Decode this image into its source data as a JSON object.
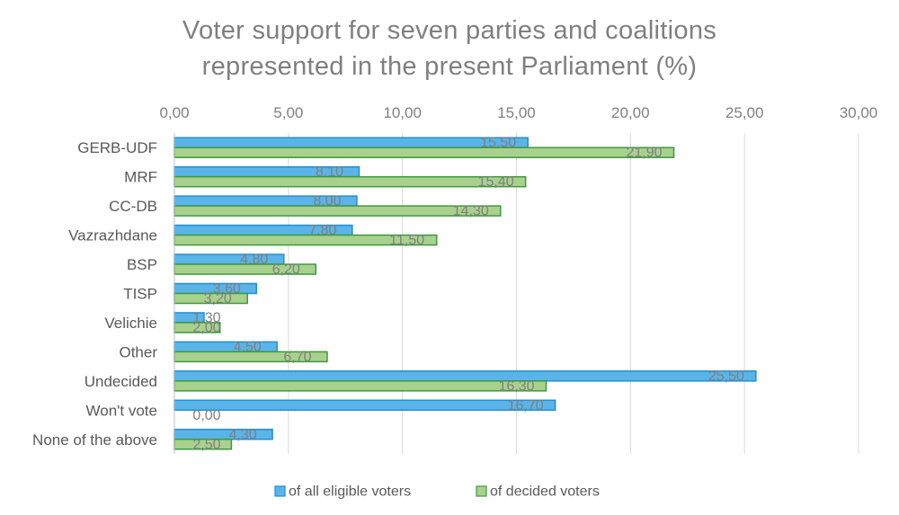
{
  "chart_data": {
    "type": "bar",
    "orientation": "horizontal",
    "title_lines": [
      "Voter support for seven parties and coalitions",
      "represented in the present Parliament (%)"
    ],
    "categories": [
      "GERB-UDF",
      "MRF",
      "CC-DB",
      "Vazrazhdane",
      "BSP",
      "TISP",
      "Velichie",
      "Other",
      "Undecided",
      "Won't vote",
      "None of the above"
    ],
    "series": [
      {
        "name": "of all eligible voters",
        "color": "#5bb4e8",
        "stroke": "#1f8fd6",
        "values": [
          15.5,
          8.1,
          8.0,
          7.8,
          4.8,
          3.6,
          1.3,
          4.5,
          25.5,
          16.7,
          4.3
        ],
        "labels": [
          "15,50",
          "8,10",
          "8,00",
          "7,80",
          "4,80",
          "3,60",
          "1,30",
          "4,50",
          "25,50",
          "16,70",
          "4,30"
        ]
      },
      {
        "name": "of decided voters",
        "color": "#a9d18e",
        "stroke": "#3c9a3c",
        "values": [
          21.9,
          15.4,
          14.3,
          11.5,
          6.2,
          3.2,
          2.0,
          6.7,
          16.3,
          0.0,
          2.5
        ],
        "labels": [
          "21,90",
          "15,40",
          "14,30",
          "11,50",
          "6,20",
          "3,20",
          "2,00",
          "6,70",
          "16,30",
          "0,00",
          "2,50"
        ]
      }
    ],
    "xlim": [
      0,
      30
    ],
    "x_ticks": [
      0,
      5,
      10,
      15,
      20,
      25,
      30
    ],
    "x_tick_labels": [
      "0,00",
      "5,00",
      "10,00",
      "15,00",
      "20,00",
      "25,00",
      "30,00"
    ],
    "x_axis_position": "top",
    "grid": true,
    "legend_position": "bottom-center"
  }
}
